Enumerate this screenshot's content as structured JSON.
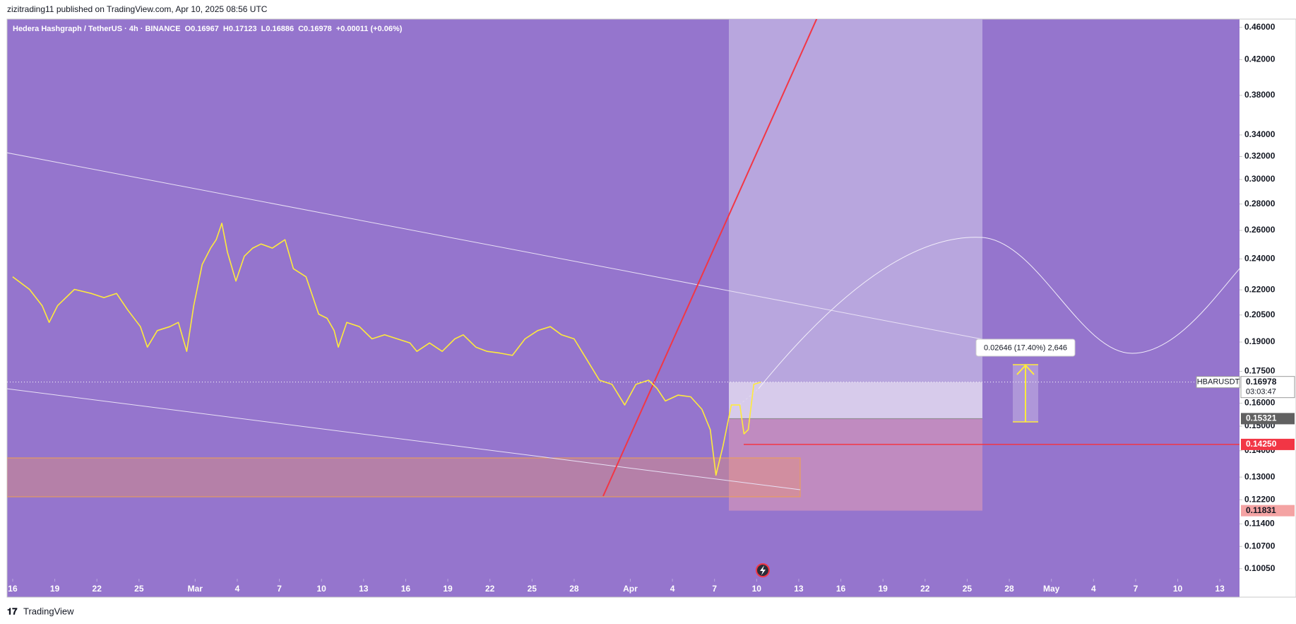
{
  "header": {
    "publisher": "zizitrading11 published on TradingView.com, Apr 10, 2025 08:56 UTC"
  },
  "footer": {
    "brand": "TradingView"
  },
  "chart_data": {
    "type": "line",
    "title": "Hedera Hashgraph / TetherUS · 4h · BINANCE",
    "ohlc_legend": [
      "O0.16967",
      "H0.17123",
      "L0.16886",
      "C0.16978",
      "+0.00011 (+0.06%)"
    ],
    "symbol": "HBARUSDT",
    "countdown": "03:03:47",
    "measure_label": "0.02646 (17.40%) 2,646",
    "color": "#ffeb3b",
    "log_scale": true,
    "grid": false,
    "x": [
      0,
      1.2,
      2.1,
      2.6,
      3.2,
      4.4,
      5.6,
      6.5,
      7.4,
      8.2,
      9.1,
      9.6,
      10.3,
      11.2,
      11.8,
      12.4,
      12.9,
      13.5,
      14.1,
      14.5,
      14.9,
      15.3,
      15.9,
      16.5,
      17.1,
      17.7,
      18.5,
      19.4,
      20.0,
      20.9,
      21.8,
      22.4,
      22.9,
      23.2,
      23.8,
      24.7,
      25.6,
      26.5,
      27.4,
      28.3,
      28.8,
      29.7,
      30.6,
      31.5,
      32.1,
      33.0,
      33.8,
      34.7,
      35.6,
      36.5,
      37.4,
      38.3,
      39.1,
      40.0,
      40.9,
      41.8,
      42.7,
      43.6,
      44.4,
      45.3,
      45.9,
      46.5,
      47.4,
      48.3,
      49.1,
      49.7,
      50.1,
      50.6,
      51.2,
      51.8,
      52.1,
      52.4,
      52.8,
      53.3
    ],
    "values": [
      0.2282,
      0.2203,
      0.2104,
      0.2008,
      0.2104,
      0.2203,
      0.2178,
      0.2153,
      0.2178,
      0.2079,
      0.1984,
      0.1873,
      0.1962,
      0.1984,
      0.2008,
      0.1851,
      0.2104,
      0.2363,
      0.2474,
      0.2533,
      0.2653,
      0.2446,
      0.2255,
      0.2418,
      0.2474,
      0.2503,
      0.2474,
      0.2533,
      0.2335,
      0.2282,
      0.2055,
      0.2031,
      0.1962,
      0.1873,
      0.2008,
      0.1984,
      0.1917,
      0.1939,
      0.1917,
      0.1895,
      0.1851,
      0.1895,
      0.1851,
      0.1917,
      0.1939,
      0.1873,
      0.1851,
      0.1842,
      0.183,
      0.1917,
      0.1962,
      0.1984,
      0.1939,
      0.1917,
      0.1809,
      0.1707,
      0.1687,
      0.1592,
      0.1687,
      0.1707,
      0.1668,
      0.161,
      0.1637,
      0.1629,
      0.1573,
      0.1485,
      0.1307,
      0.1417,
      0.1592,
      0.1592,
      0.1468,
      0.1485,
      0.1687,
      0.16978
    ],
    "xlim": [
      -0.4,
      87.4
    ],
    "xticks": [
      {
        "value": 0,
        "label": "16"
      },
      {
        "value": 3,
        "label": "19"
      },
      {
        "value": 6,
        "label": "22"
      },
      {
        "value": 9,
        "label": "25"
      },
      {
        "value": 13,
        "label": "Mar"
      },
      {
        "value": 16,
        "label": "4"
      },
      {
        "value": 19,
        "label": "7"
      },
      {
        "value": 22,
        "label": "10"
      },
      {
        "value": 25,
        "label": "13"
      },
      {
        "value": 28,
        "label": "16"
      },
      {
        "value": 31,
        "label": "19"
      },
      {
        "value": 34,
        "label": "22"
      },
      {
        "value": 37,
        "label": "25"
      },
      {
        "value": 40,
        "label": "28"
      },
      {
        "value": 44,
        "label": "Apr"
      },
      {
        "value": 47,
        "label": "4"
      },
      {
        "value": 50,
        "label": "7"
      },
      {
        "value": 53,
        "label": "10"
      },
      {
        "value": 56,
        "label": "13"
      },
      {
        "value": 59,
        "label": "16"
      },
      {
        "value": 62,
        "label": "19"
      },
      {
        "value": 65,
        "label": "22"
      },
      {
        "value": 68,
        "label": "25"
      },
      {
        "value": 71,
        "label": "28"
      },
      {
        "value": 74,
        "label": "May"
      },
      {
        "value": 77,
        "label": "4"
      },
      {
        "value": 80,
        "label": "7"
      },
      {
        "value": 83,
        "label": "10"
      },
      {
        "value": 86,
        "label": "13"
      }
    ],
    "ylim": [
      0.0977,
      0.4708
    ],
    "yticks": [
      {
        "value": 0.46,
        "label": "0.46000"
      },
      {
        "value": 0.42,
        "label": "0.42000"
      },
      {
        "value": 0.38,
        "label": "0.38000"
      },
      {
        "value": 0.34,
        "label": "0.34000"
      },
      {
        "value": 0.32,
        "label": "0.32000"
      },
      {
        "value": 0.3,
        "label": "0.30000"
      },
      {
        "value": 0.28,
        "label": "0.28000"
      },
      {
        "value": 0.26,
        "label": "0.26000"
      },
      {
        "value": 0.24,
        "label": "0.24000"
      },
      {
        "value": 0.22,
        "label": "0.22000"
      },
      {
        "value": 0.205,
        "label": "0.20500"
      },
      {
        "value": 0.19,
        "label": "0.19000"
      },
      {
        "value": 0.175,
        "label": "0.17500"
      },
      {
        "value": 0.16,
        "label": "0.16000"
      },
      {
        "value": 0.15,
        "label": "0.15000"
      },
      {
        "value": 0.14,
        "label": "0.14000"
      },
      {
        "value": 0.13,
        "label": "0.13000"
      },
      {
        "value": 0.122,
        "label": "0.12200"
      },
      {
        "value": 0.114,
        "label": "0.11400"
      },
      {
        "value": 0.107,
        "label": "0.10700"
      },
      {
        "value": 0.1005,
        "label": "0.10050"
      }
    ],
    "price_levels": [
      0.16978,
      0.15321,
      {
        "value": 0.1425,
        "label": "0.14250"
      },
      0.11831
    ],
    "price_level_colors": [
      "#ffffff",
      "#616161",
      "#f23645",
      "#f4a3a3"
    ]
  }
}
